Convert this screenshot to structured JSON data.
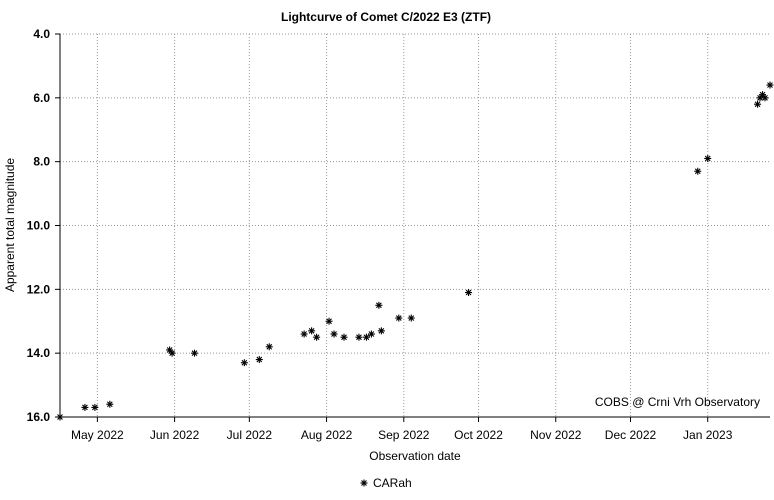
{
  "chart_data": {
    "type": "scatter",
    "title": "Lightcurve of Comet C/2022 E3 (ZTF)",
    "xlabel": "Observation date",
    "ylabel": "Apparent total magnitude",
    "annotation": "COBS @ Crni Vrh Observatory",
    "x_tick_labels": [
      "May 2022",
      "Jun 2022",
      "Jul 2022",
      "Aug 2022",
      "Sep 2022",
      "Oct 2022",
      "Nov 2022",
      "Dec 2022",
      "Jan 2023"
    ],
    "x_ticks": [
      "2022-05-01",
      "2022-06-01",
      "2022-07-01",
      "2022-08-01",
      "2022-09-01",
      "2022-10-01",
      "2022-11-01",
      "2022-12-01",
      "2023-01-01"
    ],
    "xlim": [
      "2022-04-16",
      "2023-01-26"
    ],
    "ylim": [
      16.0,
      4.0
    ],
    "y_inverted": true,
    "y_ticks": [
      "4.0",
      "6.0",
      "8.0",
      "10.0",
      "12.0",
      "14.0",
      "16.0"
    ],
    "grid": true,
    "legend_position": "bottom-center",
    "series": [
      {
        "name": "CARah",
        "marker": "asterisk",
        "color": "#000000",
        "points": [
          {
            "x": "2022-04-16",
            "y": 16.0
          },
          {
            "x": "2022-04-26",
            "y": 15.7
          },
          {
            "x": "2022-04-30",
            "y": 15.7
          },
          {
            "x": "2022-05-06",
            "y": 15.6
          },
          {
            "x": "2022-05-30",
            "y": 13.9
          },
          {
            "x": "2022-05-31",
            "y": 14.0
          },
          {
            "x": "2022-06-09",
            "y": 14.0
          },
          {
            "x": "2022-06-29",
            "y": 14.3
          },
          {
            "x": "2022-07-05",
            "y": 14.2
          },
          {
            "x": "2022-07-09",
            "y": 13.8
          },
          {
            "x": "2022-07-23",
            "y": 13.4
          },
          {
            "x": "2022-07-26",
            "y": 13.3
          },
          {
            "x": "2022-07-28",
            "y": 13.5
          },
          {
            "x": "2022-08-02",
            "y": 13.0
          },
          {
            "x": "2022-08-04",
            "y": 13.4
          },
          {
            "x": "2022-08-08",
            "y": 13.5
          },
          {
            "x": "2022-08-14",
            "y": 13.5
          },
          {
            "x": "2022-08-17",
            "y": 13.5
          },
          {
            "x": "2022-08-19",
            "y": 13.4
          },
          {
            "x": "2022-08-22",
            "y": 12.5
          },
          {
            "x": "2022-08-23",
            "y": 13.3
          },
          {
            "x": "2022-08-30",
            "y": 12.9
          },
          {
            "x": "2022-09-04",
            "y": 12.9
          },
          {
            "x": "2022-09-27",
            "y": 12.1
          },
          {
            "x": "2022-12-28",
            "y": 8.3
          },
          {
            "x": "2023-01-01",
            "y": 7.9
          },
          {
            "x": "2023-01-21",
            "y": 6.2
          },
          {
            "x": "2023-01-22",
            "y": 6.0
          },
          {
            "x": "2023-01-23",
            "y": 5.9
          },
          {
            "x": "2023-01-24",
            "y": 6.0
          },
          {
            "x": "2023-01-26",
            "y": 5.6
          }
        ]
      }
    ]
  }
}
